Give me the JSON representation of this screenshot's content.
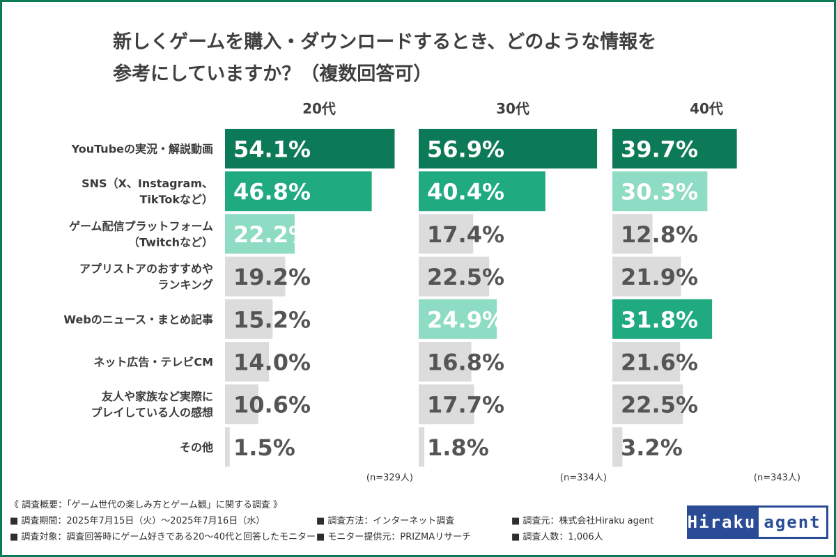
{
  "title": {
    "line1": "新しくゲームを購入・ダウンロードするとき、どのような情報を",
    "line2": "参考にしていますか？（複数回答可）"
  },
  "colors": {
    "frame": "#0d7a57",
    "top1": "#0d7a57",
    "top2": "#1faa7f",
    "top3": "#8edcc3",
    "other": "#dcdcdc",
    "label_light": "#ffffff",
    "label_dark": "#555555",
    "logo": "#2a4c96"
  },
  "chart_data": {
    "type": "bar",
    "orientation": "horizontal",
    "categories": [
      [
        "YouTubeの実況・解説動画"
      ],
      [
        "SNS（X、Instagram、",
        "TikTokなど）"
      ],
      [
        "ゲーム配信プラットフォーム",
        "（Twitchなど）"
      ],
      [
        "アプリストアのおすすめや",
        "ランキング"
      ],
      [
        "Webのニュース・まとめ記事"
      ],
      [
        "ネット広告・テレビCM"
      ],
      [
        "友人や家族など実際に",
        "プレイしている人の感想"
      ],
      [
        "その他"
      ]
    ],
    "series": [
      {
        "name": "20代",
        "n": "(n=329人)",
        "values": [
          54.1,
          46.8,
          22.2,
          19.2,
          15.2,
          14.0,
          10.6,
          1.5
        ],
        "labels": [
          "54.1%",
          "46.8%",
          "22.2%",
          "19.2%",
          "15.2%",
          "14.0%",
          "10.6%",
          "1.5%"
        ],
        "highlight_rank": [
          1,
          2,
          3,
          0,
          0,
          0,
          0,
          0
        ]
      },
      {
        "name": "30代",
        "n": "(n=334人)",
        "values": [
          56.9,
          40.4,
          17.4,
          22.5,
          24.9,
          16.8,
          17.7,
          1.8
        ],
        "labels": [
          "56.9%",
          "40.4%",
          "17.4%",
          "22.5%",
          "24.9%",
          "16.8%",
          "17.7%",
          "1.8%"
        ],
        "highlight_rank": [
          1,
          2,
          0,
          0,
          3,
          0,
          0,
          0
        ]
      },
      {
        "name": "40代",
        "n": "(n=343人)",
        "values": [
          39.7,
          30.3,
          12.8,
          21.9,
          31.8,
          21.6,
          22.5,
          3.2
        ],
        "labels": [
          "39.7%",
          "30.3%",
          "12.8%",
          "21.9%",
          "31.8%",
          "21.6%",
          "22.5%",
          "3.2%"
        ],
        "highlight_rank": [
          1,
          3,
          0,
          0,
          2,
          0,
          0,
          0
        ]
      }
    ],
    "xlim": [
      0,
      60
    ],
    "grid": false,
    "legend": "none"
  },
  "notes": {
    "summary": "《 調査概要：「ゲーム世代の楽しみ方とゲーム観」に関する調査 》",
    "period": "■ 調査期間：2025年7月15日（火）〜2025年7月16日（水）",
    "method": "■ 調査方法：インターネット調査",
    "source": "■ 調査元：株式会社Hiraku agent",
    "target": "■ 調査対象：調査回答時にゲーム好きである20〜40代と回答したモニター",
    "provider": "■ モニター提供元：PRIZMAリサーチ",
    "count": "■ 調査人数：1,006人"
  },
  "logo": {
    "part1": "Hiraku",
    "part2": "agent"
  }
}
